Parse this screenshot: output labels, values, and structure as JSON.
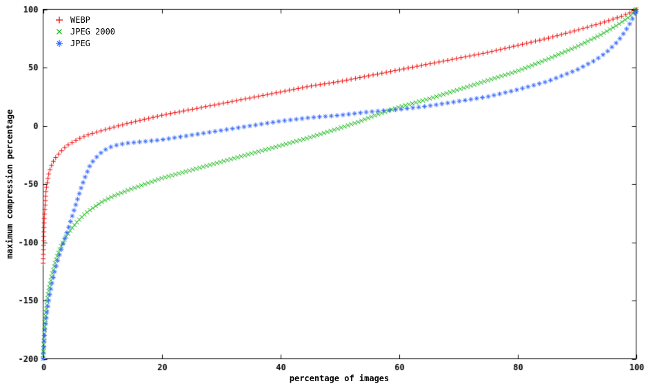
{
  "page": {
    "background": "#ffffff",
    "border_color": "#000000",
    "text_color": "#000000"
  },
  "chart_data": {
    "type": "scatter",
    "title": "",
    "xlabel": "percentage of images",
    "ylabel": "maximum compression percentage",
    "xlim": [
      0,
      100
    ],
    "ylim": [
      -200,
      100
    ],
    "xticks": [
      0,
      20,
      40,
      60,
      80,
      100
    ],
    "yticks": [
      -200,
      -150,
      -100,
      -50,
      0,
      50,
      100
    ],
    "grid": false,
    "legend_position": "top-left",
    "series": [
      {
        "name": "WEBP",
        "color": "#ee0000",
        "marker": "plus",
        "marker_spacing_px": 6.5,
        "x": [
          0,
          0.2,
          0.5,
          1,
          1.5,
          2,
          3,
          4,
          5,
          6,
          8,
          10,
          12,
          15,
          20,
          25,
          30,
          35,
          40,
          45,
          50,
          55,
          60,
          65,
          70,
          75,
          80,
          85,
          90,
          94,
          97,
          99,
          100
        ],
        "y": [
          -118,
          -80,
          -55,
          -40,
          -33,
          -28,
          -22,
          -17,
          -14,
          -11,
          -7,
          -4,
          -1,
          3,
          9,
          14,
          19,
          24,
          29,
          34,
          38,
          43,
          48,
          53,
          58,
          63,
          69,
          75,
          82,
          88,
          93,
          97,
          100
        ]
      },
      {
        "name": "JPEG 2000",
        "color": "#00b000",
        "marker": "cross",
        "marker_spacing_px": 5.2,
        "x": [
          0,
          0.3,
          0.7,
          1,
          1.5,
          2,
          2.5,
          3,
          4,
          5,
          6,
          7,
          8,
          10,
          12,
          15,
          20,
          25,
          30,
          35,
          40,
          45,
          50,
          53,
          56,
          60,
          65,
          70,
          75,
          80,
          85,
          90,
          94,
          97,
          99,
          100
        ],
        "y": [
          -200,
          -170,
          -150,
          -140,
          -128,
          -118,
          -110,
          -104,
          -94,
          -87,
          -81,
          -76,
          -72,
          -65,
          -60,
          -54,
          -45,
          -38,
          -31,
          -24,
          -17,
          -10,
          -2,
          3,
          9,
          16,
          23,
          31,
          39,
          47,
          57,
          68,
          78,
          87,
          94,
          100
        ]
      },
      {
        "name": "JPEG",
        "color": "#3366ff",
        "marker": "asterisk",
        "marker_spacing_px": 8.5,
        "x": [
          0,
          0.3,
          0.7,
          1,
          1.5,
          2,
          2.5,
          3,
          3.5,
          4,
          4.5,
          5,
          5.5,
          6,
          6.5,
          7,
          7.5,
          8,
          9,
          10,
          11,
          12,
          14,
          16,
          18,
          20,
          25,
          30,
          35,
          40,
          45,
          50,
          55,
          60,
          65,
          70,
          75,
          80,
          85,
          90,
          93,
          95,
          97,
          98,
          99,
          100
        ],
        "y": [
          -200,
          -175,
          -158,
          -148,
          -135,
          -124,
          -115,
          -107,
          -99,
          -92,
          -84,
          -76,
          -68,
          -60,
          -52,
          -45,
          -39,
          -33,
          -27,
          -22,
          -19,
          -17,
          -15,
          -14,
          -13,
          -12,
          -8,
          -4,
          0,
          4,
          7,
          9,
          12,
          14,
          17,
          21,
          25,
          31,
          38,
          48,
          56,
          63,
          73,
          80,
          88,
          98
        ]
      }
    ]
  }
}
